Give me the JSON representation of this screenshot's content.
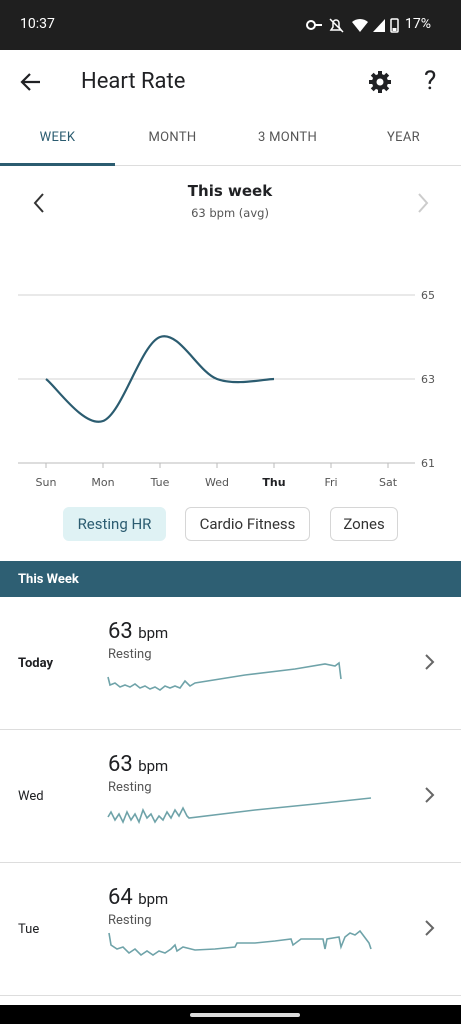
{
  "status_bar": {
    "time": "10:37",
    "battery": "17%"
  },
  "header": {
    "title": "Heart Rate"
  },
  "tabs": [
    "WEEK",
    "MONTH",
    "3 MONTH",
    "YEAR"
  ],
  "chart_data": {
    "type": "line",
    "title": "This week",
    "subtitle": "63 bpm (avg)",
    "categories": [
      "Sun",
      "Mon",
      "Tue",
      "Wed",
      "Thu",
      "Fri",
      "Sat"
    ],
    "values": [
      63,
      62,
      64,
      63,
      63,
      null,
      null
    ],
    "color": "#2b5c70",
    "ylim": [
      61,
      65
    ],
    "yticks": [
      61,
      63,
      65
    ],
    "grid": true,
    "bold_category": "Thu"
  },
  "filters": [
    "Resting HR",
    "Cardio Fitness",
    "Zones"
  ],
  "section": {
    "title": "This Week"
  },
  "list": [
    {
      "day": "Today",
      "value": "63",
      "unit": "bpm",
      "label": "Resting"
    },
    {
      "day": "Wed",
      "value": "63",
      "unit": "bpm",
      "label": "Resting"
    },
    {
      "day": "Tue",
      "value": "64",
      "unit": "bpm",
      "label": "Resting"
    }
  ]
}
